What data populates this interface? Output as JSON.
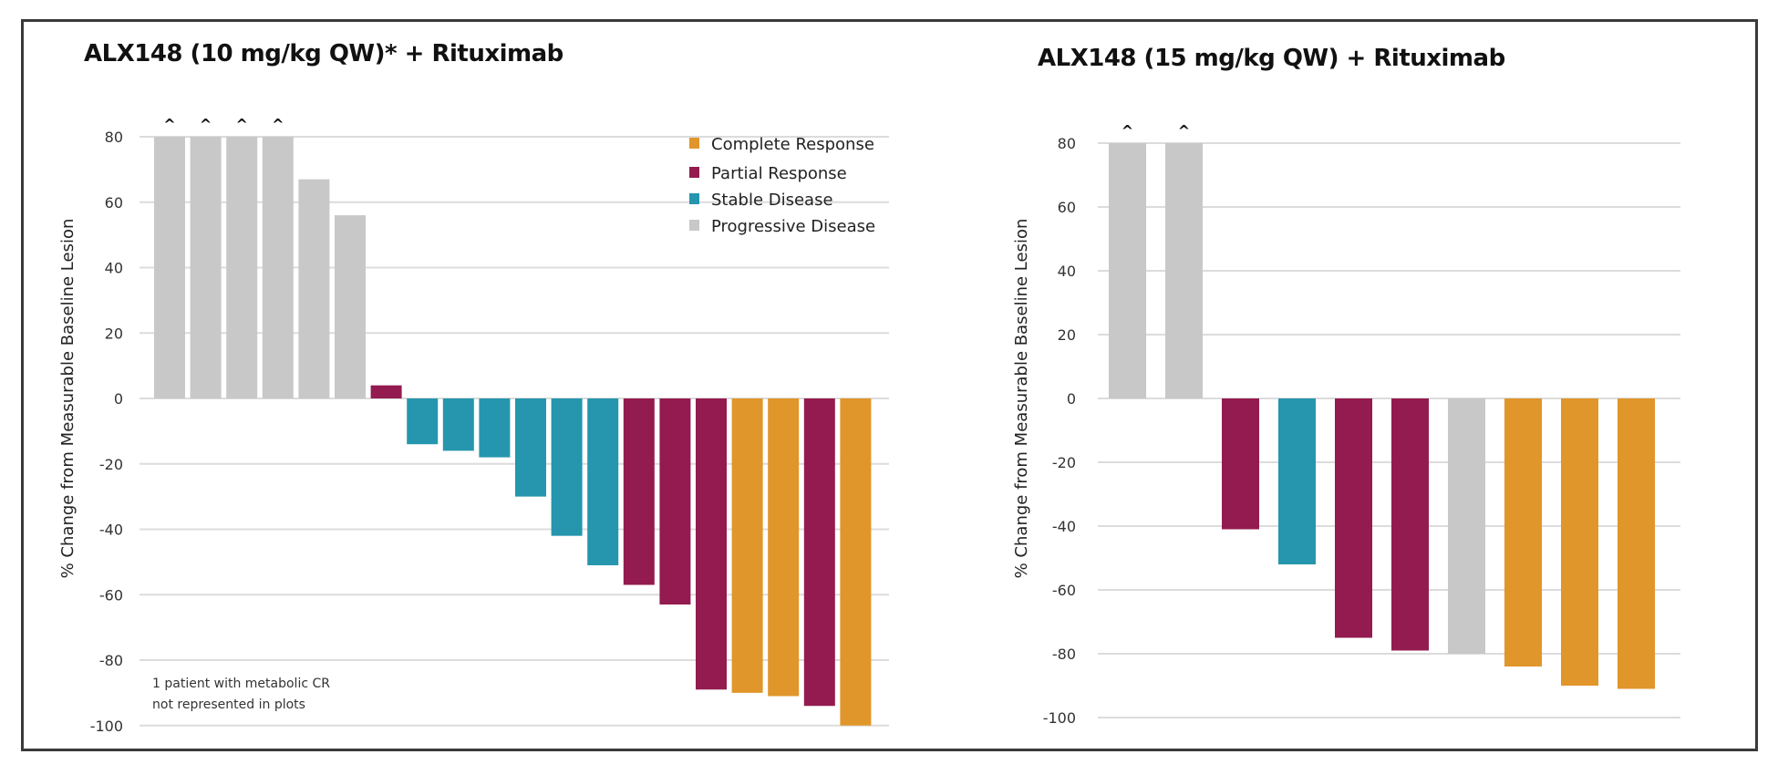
{
  "colors": {
    "complete": "#e0962a",
    "partial": "#931b4f",
    "stable": "#2596ad",
    "progressive": "#c8c8c9",
    "grid": "#dcdcdc"
  },
  "legend": [
    {
      "key": "complete",
      "label": "Complete Response"
    },
    {
      "key": "partial",
      "label": "Partial Response"
    },
    {
      "key": "stable",
      "label": "Stable Disease"
    },
    {
      "key": "progressive",
      "label": "Progressive Disease"
    }
  ],
  "chart_data": [
    {
      "type": "bar",
      "title": "ALX148 (10 mg/kg QW)* + Rituximab",
      "xlabel": "",
      "ylabel": "% Change from Measurable Baseline Lesion",
      "ylim": [
        -100,
        80
      ],
      "yticks": [
        80,
        60,
        40,
        20,
        0,
        -20,
        -40,
        -60,
        -80,
        -100
      ],
      "grid": true,
      "legend_position": "top-right",
      "capped_marker": "^",
      "annotation": [
        "1 patient with metabolic CR",
        "not represented in plots"
      ],
      "bars": [
        {
          "value": 80,
          "response": "progressive",
          "capped": true
        },
        {
          "value": 80,
          "response": "progressive",
          "capped": true
        },
        {
          "value": 80,
          "response": "progressive",
          "capped": true
        },
        {
          "value": 80,
          "response": "progressive",
          "capped": true
        },
        {
          "value": 67,
          "response": "progressive",
          "capped": false
        },
        {
          "value": 56,
          "response": "progressive",
          "capped": false
        },
        {
          "value": 4,
          "response": "partial",
          "capped": false
        },
        {
          "value": -14,
          "response": "stable",
          "capped": false
        },
        {
          "value": -16,
          "response": "stable",
          "capped": false
        },
        {
          "value": -18,
          "response": "stable",
          "capped": false
        },
        {
          "value": -30,
          "response": "stable",
          "capped": false
        },
        {
          "value": -42,
          "response": "stable",
          "capped": false
        },
        {
          "value": -51,
          "response": "stable",
          "capped": false
        },
        {
          "value": -57,
          "response": "partial",
          "capped": false
        },
        {
          "value": -63,
          "response": "partial",
          "capped": false
        },
        {
          "value": -89,
          "response": "partial",
          "capped": false
        },
        {
          "value": -90,
          "response": "complete",
          "capped": false
        },
        {
          "value": -91,
          "response": "complete",
          "capped": false
        },
        {
          "value": -94,
          "response": "partial",
          "capped": false
        },
        {
          "value": -100,
          "response": "complete",
          "capped": false
        }
      ]
    },
    {
      "type": "bar",
      "title": "ALX148 (15 mg/kg QW) + Rituximab",
      "xlabel": "",
      "ylabel": "% Change from Measurable Baseline Lesion",
      "ylim": [
        -100,
        80
      ],
      "yticks": [
        80,
        60,
        40,
        20,
        0,
        -20,
        -40,
        -60,
        -80,
        -100
      ],
      "grid": true,
      "capped_marker": "^",
      "bars": [
        {
          "value": 80,
          "response": "progressive",
          "capped": true
        },
        {
          "value": 80,
          "response": "progressive",
          "capped": true
        },
        {
          "value": -41,
          "response": "partial",
          "capped": false
        },
        {
          "value": -52,
          "response": "stable",
          "capped": false
        },
        {
          "value": -75,
          "response": "partial",
          "capped": false
        },
        {
          "value": -79,
          "response": "partial",
          "capped": false
        },
        {
          "value": -80,
          "response": "progressive",
          "capped": false
        },
        {
          "value": -84,
          "response": "complete",
          "capped": false
        },
        {
          "value": -90,
          "response": "complete",
          "capped": false
        },
        {
          "value": -91,
          "response": "complete",
          "capped": false
        }
      ]
    }
  ]
}
